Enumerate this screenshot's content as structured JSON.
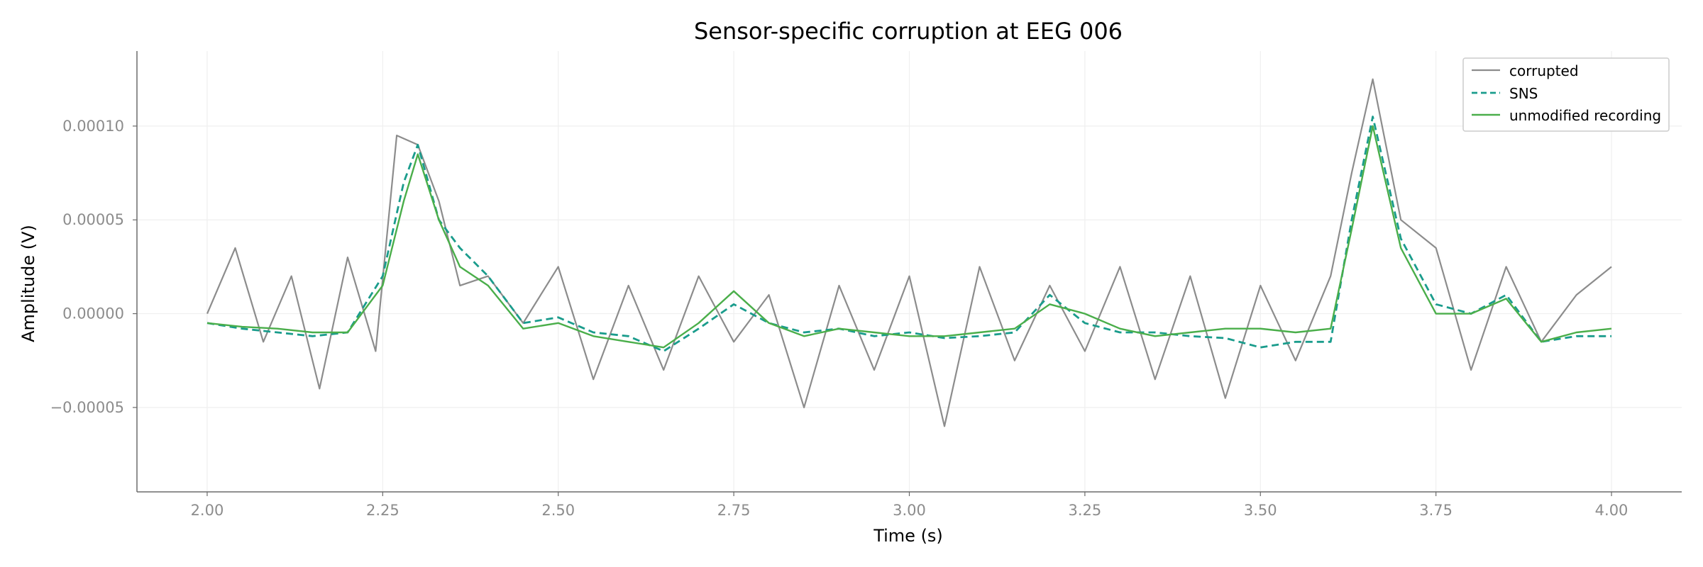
{
  "chart_data": {
    "type": "line",
    "title": "Sensor-specific corruption at EEG 006",
    "xlabel": "Time (s)",
    "ylabel": "Amplitude (V)",
    "xlim": [
      1.9,
      4.1
    ],
    "ylim": [
      -9.5e-05,
      0.00014
    ],
    "x_ticks": [
      2.0,
      2.25,
      2.5,
      2.75,
      3.0,
      3.25,
      3.5,
      3.75,
      4.0
    ],
    "x_tick_labels": [
      "2.00",
      "2.25",
      "2.50",
      "2.75",
      "3.00",
      "3.25",
      "3.50",
      "3.75",
      "4.00"
    ],
    "y_ticks": [
      -5e-05,
      0.0,
      5e-05,
      0.0001
    ],
    "y_tick_labels": [
      "−0.00005",
      "0.00000",
      "0.00005",
      "0.00010"
    ],
    "grid": true,
    "legend_position": "top-right",
    "series": [
      {
        "name": "corrupted",
        "color": "#8c8c8c",
        "style": "solid",
        "x": [
          2.0,
          2.04,
          2.08,
          2.12,
          2.16,
          2.2,
          2.24,
          2.27,
          2.3,
          2.33,
          2.36,
          2.4,
          2.45,
          2.5,
          2.55,
          2.6,
          2.65,
          2.7,
          2.75,
          2.8,
          2.85,
          2.9,
          2.95,
          3.0,
          3.05,
          3.1,
          3.15,
          3.2,
          3.25,
          3.3,
          3.35,
          3.4,
          3.45,
          3.5,
          3.55,
          3.6,
          3.63,
          3.66,
          3.7,
          3.75,
          3.8,
          3.85,
          3.9,
          3.95,
          4.0
        ],
        "values": [
          0.0,
          3.5e-05,
          -1.5e-05,
          2e-05,
          -4e-05,
          3e-05,
          -2e-05,
          9.5e-05,
          9e-05,
          6e-05,
          1.5e-05,
          2e-05,
          -5e-06,
          2.5e-05,
          -3.5e-05,
          1.5e-05,
          -3e-05,
          2e-05,
          -1.5e-05,
          1e-05,
          -5e-05,
          1.5e-05,
          -3e-05,
          2e-05,
          -6e-05,
          2.5e-05,
          -2.5e-05,
          1.5e-05,
          -2e-05,
          2.5e-05,
          -3.5e-05,
          2e-05,
          -4.5e-05,
          1.5e-05,
          -2.5e-05,
          2e-05,
          7.5e-05,
          0.000125,
          5e-05,
          3.5e-05,
          -3e-05,
          2.5e-05,
          -1.5e-05,
          1e-05,
          2.5e-05
        ]
      },
      {
        "name": "SNS",
        "color": "#1a9c8c",
        "style": "dashed",
        "x": [
          2.0,
          2.05,
          2.1,
          2.15,
          2.2,
          2.25,
          2.28,
          2.3,
          2.33,
          2.36,
          2.4,
          2.45,
          2.5,
          2.55,
          2.6,
          2.65,
          2.7,
          2.75,
          2.8,
          2.85,
          2.9,
          2.95,
          3.0,
          3.05,
          3.1,
          3.15,
          3.2,
          3.25,
          3.3,
          3.35,
          3.4,
          3.45,
          3.5,
          3.55,
          3.6,
          3.63,
          3.66,
          3.7,
          3.75,
          3.8,
          3.85,
          3.9,
          3.95,
          4.0
        ],
        "values": [
          -5e-06,
          -8e-06,
          -1e-05,
          -1.2e-05,
          -1e-05,
          2e-05,
          7e-05,
          9e-05,
          5e-05,
          3.5e-05,
          2e-05,
          -5e-06,
          -2e-06,
          -1e-05,
          -1.2e-05,
          -2e-05,
          -8e-06,
          5e-06,
          -5e-06,
          -1e-05,
          -8e-06,
          -1.2e-05,
          -1e-05,
          -1.3e-05,
          -1.2e-05,
          -1e-05,
          1e-05,
          -5e-06,
          -1e-05,
          -1e-05,
          -1.2e-05,
          -1.3e-05,
          -1.8e-05,
          -1.5e-05,
          -1.5e-05,
          5e-05,
          0.000105,
          4e-05,
          5e-06,
          0.0,
          1e-05,
          -1.5e-05,
          -1.2e-05,
          -1.2e-05
        ]
      },
      {
        "name": "unmodified recording",
        "color": "#4aae4a",
        "style": "solid",
        "x": [
          2.0,
          2.05,
          2.1,
          2.15,
          2.2,
          2.25,
          2.28,
          2.3,
          2.33,
          2.36,
          2.4,
          2.45,
          2.5,
          2.55,
          2.6,
          2.65,
          2.7,
          2.75,
          2.8,
          2.85,
          2.9,
          2.95,
          3.0,
          3.05,
          3.1,
          3.15,
          3.2,
          3.25,
          3.3,
          3.35,
          3.4,
          3.45,
          3.5,
          3.55,
          3.6,
          3.63,
          3.66,
          3.7,
          3.75,
          3.8,
          3.85,
          3.9,
          3.95,
          4.0
        ],
        "values": [
          -5e-06,
          -7e-06,
          -8e-06,
          -1e-05,
          -1e-05,
          1.5e-05,
          6e-05,
          8.5e-05,
          5e-05,
          2.5e-05,
          1.5e-05,
          -8e-06,
          -5e-06,
          -1.2e-05,
          -1.5e-05,
          -1.8e-05,
          -5e-06,
          1.2e-05,
          -5e-06,
          -1.2e-05,
          -8e-06,
          -1e-05,
          -1.2e-05,
          -1.2e-05,
          -1e-05,
          -8e-06,
          5e-06,
          0.0,
          -8e-06,
          -1.2e-05,
          -1e-05,
          -8e-06,
          -8e-06,
          -1e-05,
          -8e-06,
          4.5e-05,
          0.0001,
          3.5e-05,
          0.0,
          0.0,
          8e-06,
          -1.5e-05,
          -1e-05,
          -8e-06
        ]
      }
    ]
  }
}
